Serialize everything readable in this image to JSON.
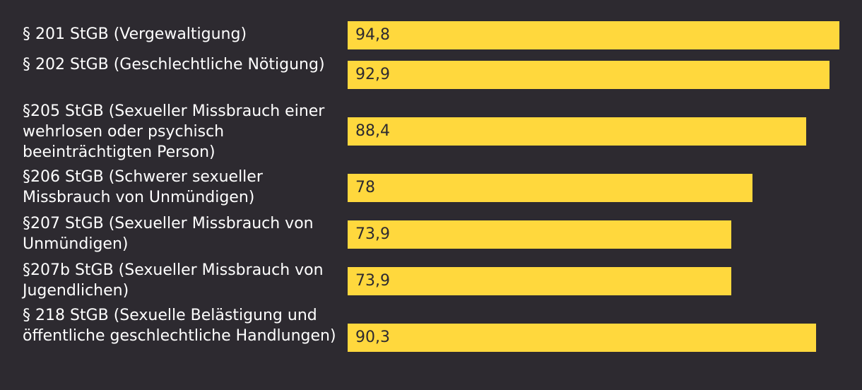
{
  "chart_data": {
    "type": "bar",
    "orientation": "horizontal",
    "title": "",
    "xlabel": "",
    "ylabel": "",
    "xlim": [
      0,
      94.8
    ],
    "grid": false,
    "legend": "none",
    "categories": [
      "§ 201 StGB (Vergewaltigung)",
      "§ 202 StGB (Geschlechtliche Nötigung)",
      "§205 StGB (Sexueller Missbrauch einer wehrlosen oder psychisch beeinträchtigten Person)",
      "§206 StGB (Schwerer sexueller Missbrauch von Unmündigen)",
      "§207 StGB (Sexueller Missbrauch von Unmündigen)",
      "§207b StGB (Sexueller Missbrauch von Jugendlichen)",
      "§ 218 StGB (Sexuelle Belästigung und öffentliche geschlechtliche Handlungen)"
    ],
    "values": [
      94.8,
      92.9,
      88.4,
      78,
      73.9,
      73.9,
      90.3
    ],
    "value_labels": [
      "94,8",
      "92,9",
      "88,4",
      "78",
      "73,9",
      "73,9",
      "90,3"
    ],
    "colors": {
      "bar": "#ffd83d",
      "background": "#2d2a30",
      "label_text": "#ffffff",
      "value_text": "#2d2a30"
    }
  }
}
